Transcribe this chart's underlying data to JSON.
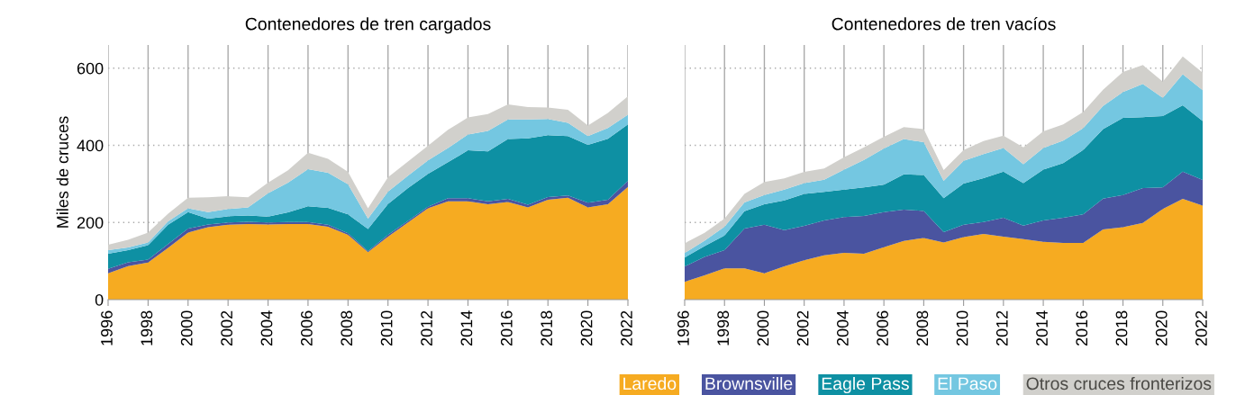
{
  "chart_data": [
    {
      "type": "area",
      "stacked": true,
      "title": "Contenedores de tren cargados",
      "ylabel": "Miles de cruces",
      "x": [
        1996,
        1997,
        1998,
        1999,
        2000,
        2001,
        2002,
        2003,
        2004,
        2005,
        2006,
        2007,
        2008,
        2009,
        2010,
        2011,
        2012,
        2013,
        2014,
        2015,
        2016,
        2017,
        2018,
        2019,
        2020,
        2021,
        2022
      ],
      "xlim": [
        1996,
        2022
      ],
      "xticks": [
        1996,
        1998,
        2000,
        2002,
        2004,
        2006,
        2008,
        2010,
        2012,
        2014,
        2016,
        2018,
        2020,
        2022
      ],
      "ylim": [
        0,
        660
      ],
      "yticks": [
        0,
        200,
        400,
        600
      ],
      "grid": true,
      "legend": "bottom right",
      "series": [
        {
          "name": "Laredo",
          "color": "#f6ab21",
          "values": [
            68,
            87,
            96,
            134,
            174,
            188,
            194,
            196,
            195,
            196,
            196,
            189,
            168,
            123,
            163,
            200,
            237,
            255,
            255,
            247,
            253,
            239,
            259,
            264,
            239,
            247,
            292
          ]
        },
        {
          "name": "Brownsville",
          "color": "#4a54a0",
          "values": [
            12,
            10,
            8,
            10,
            10,
            7,
            6,
            6,
            5,
            5,
            5,
            5,
            4,
            3,
            5,
            4,
            4,
            8,
            8,
            8,
            8,
            7,
            7,
            6,
            12,
            12,
            16
          ]
        },
        {
          "name": "Eagle Pass",
          "color": "#0e90a3",
          "values": [
            39,
            31,
            37,
            50,
            43,
            15,
            16,
            16,
            15,
            25,
            41,
            44,
            49,
            57,
            80,
            85,
            85,
            93,
            124,
            129,
            155,
            172,
            160,
            154,
            150,
            158,
            146
          ]
        },
        {
          "name": "El Paso",
          "color": "#74c7e1",
          "values": [
            9,
            7,
            7,
            9,
            10,
            17,
            19,
            21,
            61,
            77,
            96,
            91,
            78,
            27,
            32,
            32,
            35,
            37,
            41,
            53,
            51,
            49,
            42,
            34,
            23,
            28,
            25
          ]
        },
        {
          "name": "Otros cruces fronterizos",
          "color": "#d1d0cc",
          "values": [
            14,
            20,
            26,
            20,
            27,
            38,
            33,
            26,
            27,
            32,
            43,
            36,
            32,
            27,
            37,
            37,
            38,
            47,
            44,
            44,
            39,
            32,
            30,
            34,
            27,
            39,
            48
          ]
        }
      ]
    },
    {
      "type": "area",
      "stacked": true,
      "title": "Contenedores de tren vacíos",
      "tick_labels": "x",
      "x": [
        1996,
        1997,
        1998,
        1999,
        2000,
        2001,
        2002,
        2003,
        2004,
        2005,
        2006,
        2007,
        2008,
        2009,
        2010,
        2011,
        2012,
        2013,
        2014,
        2015,
        2016,
        2017,
        2018,
        2019,
        2020,
        2021,
        2022
      ],
      "xlim": [
        1996,
        2022
      ],
      "xticks": [
        1996,
        1998,
        2000,
        2002,
        2004,
        2006,
        2008,
        2010,
        2012,
        2014,
        2016,
        2018,
        2020,
        2022
      ],
      "ylim": [
        0,
        660
      ],
      "yticks": [
        0,
        200,
        400,
        600
      ],
      "grid": true,
      "series": [
        {
          "color": "#f6ab21",
          "values": [
            46,
            63,
            81,
            81,
            68,
            86,
            102,
            115,
            121,
            119,
            136,
            152,
            160,
            148,
            162,
            170,
            163,
            157,
            150,
            147,
            147,
            182,
            188,
            199,
            235,
            261,
            244
          ]
        },
        {
          "color": "#4a54a0",
          "values": [
            40,
            48,
            47,
            103,
            126,
            94,
            89,
            90,
            93,
            98,
            91,
            81,
            70,
            27,
            32,
            31,
            49,
            35,
            55,
            65,
            74,
            80,
            83,
            90,
            56,
            71,
            66
          ]
        },
        {
          "color": "#0e90a3",
          "values": [
            23,
            28,
            38,
            45,
            53,
            77,
            83,
            74,
            71,
            74,
            71,
            92,
            93,
            88,
            107,
            114,
            120,
            110,
            132,
            142,
            167,
            180,
            200,
            184,
            185,
            172,
            153
          ]
        },
        {
          "color": "#74c7e1",
          "values": [
            12,
            14,
            23,
            23,
            24,
            28,
            28,
            32,
            52,
            71,
            94,
            91,
            85,
            45,
            59,
            62,
            61,
            49,
            56,
            58,
            56,
            60,
            67,
            86,
            47,
            80,
            80
          ]
        },
        {
          "color": "#d1d0cc",
          "values": [
            25,
            20,
            21,
            22,
            34,
            29,
            29,
            29,
            32,
            33,
            30,
            31,
            34,
            28,
            28,
            34,
            32,
            44,
            43,
            42,
            42,
            42,
            52,
            49,
            42,
            46,
            45
          ]
        }
      ]
    }
  ]
}
